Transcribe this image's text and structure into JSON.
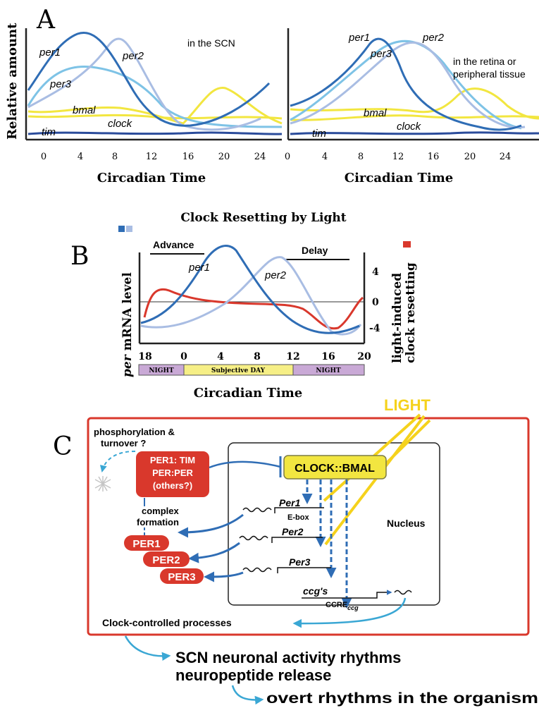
{
  "panelA": {
    "letter": "A",
    "ylabel": "Relative amount",
    "left": {
      "annotation": "in the SCN",
      "labels": {
        "per1": "per1",
        "per2": "per2",
        "per3": "per3",
        "bmal": "bmal",
        "clock": "clock",
        "tim": "tim"
      },
      "ticks": [
        "0",
        "4",
        "8",
        "12",
        "16",
        "20",
        "24"
      ],
      "xlabel": "Circadian Time"
    },
    "right": {
      "annotation_line1": "in the retina or",
      "annotation_line2": "peripheral tissue",
      "labels": {
        "per1": "per1",
        "per2": "per2",
        "per3": "per3",
        "bmal": "bmal",
        "clock": "clock",
        "tim": "tim"
      },
      "ticks": [
        "0",
        "4",
        "8",
        "12",
        "16",
        "20",
        "24"
      ],
      "xlabel": "Circadian Time"
    }
  },
  "panelB": {
    "letter": "B",
    "title": "Clock Resetting by Light",
    "ylabel_left_italic": "per",
    "ylabel_left_rest": " mRNA level",
    "ylabel_right_line1": "light-induced",
    "ylabel_right_line2": "clock resetting",
    "advance": "Advance",
    "delay": "Delay",
    "per1": "per1",
    "per2": "per2",
    "right_ticks": [
      "4",
      "0",
      "-4"
    ],
    "x_ticks": [
      "18",
      "0",
      "4",
      "8",
      "12",
      "16",
      "20"
    ],
    "bands": [
      "NIGHT",
      "Subjective DAY",
      "NIGHT"
    ],
    "xlabel": "Circadian Time"
  },
  "panelC": {
    "letter": "C",
    "light": "LIGHT",
    "phospho_line1": "phosphorylation &",
    "phospho_line2": "turnover ?",
    "complex_line1": "PER1: TIM",
    "complex_line2": "PER:PER",
    "complex_line3": "(others?)",
    "complex_formation_line1": "complex",
    "complex_formation_line2": "formation",
    "clock_bmal": "CLOCK::BMAL",
    "per1_gene": "Per1",
    "ebox": "E-box",
    "per2_gene": "Per2",
    "per3_gene": "Per3",
    "ccgs": "ccg's",
    "ccre": "CCRE",
    "ccre_sub": "ccg",
    "nucleus": "Nucleus",
    "proteins": [
      "PER1",
      "PER2",
      "PER3"
    ],
    "clock_controlled": "Clock-controlled processes",
    "out1": "SCN neuronal activity rhythms",
    "out2": "neuropeptide release",
    "out3": "overt rhythms in the organism"
  },
  "colors": {
    "per1": "#2f6db5",
    "per3": "#7ec3e6",
    "per2": "#a9bde3",
    "bmal": "#f2e640",
    "tim": "#2a4b9a",
    "red": "#d9382c",
    "light": "#f5d21c",
    "night": "#c9a9d6",
    "day": "#f6ef86",
    "cyanArrow": "#3aa7d4"
  }
}
